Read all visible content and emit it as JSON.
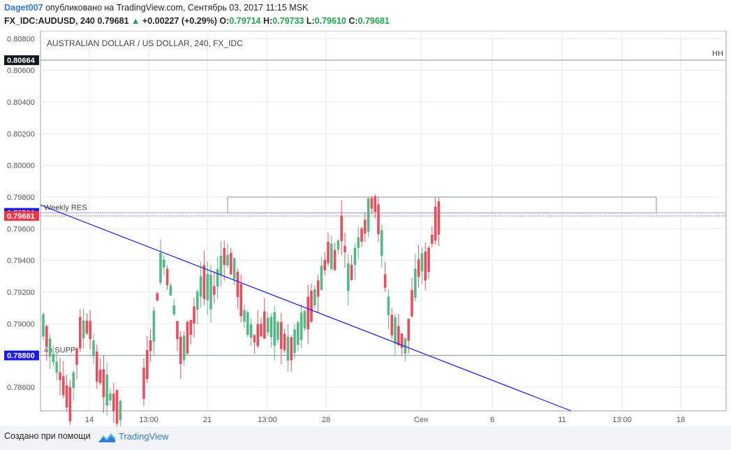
{
  "header": {
    "author": "Daget007",
    "published": "опубликовано на TradingView.com, Сентябрь 03, 2017 11:15 MSK",
    "symbol": "FX_IDC:AUDUSD, 240",
    "last": "0.79681",
    "change": "+0.00227 (+0.29%)",
    "ohlc": [
      {
        "label": "O:",
        "value": "0.79714"
      },
      {
        "label": "H:",
        "value": "0.79733"
      },
      {
        "label": "L:",
        "value": "0.79610"
      },
      {
        "label": "C:",
        "value": "0.79681"
      }
    ]
  },
  "footer": {
    "created_with": "Создано при помощи",
    "brand": "TradingView"
  },
  "colors": {
    "up": "#53b987",
    "down": "#eb4d5c",
    "trendline": "#1c1ce6",
    "price_label": "#f23645",
    "axis_label": "#1c1ce6",
    "accent": "#2d7ad6"
  },
  "chart_data": {
    "type": "candlestick",
    "title": "AUSTRALIAN DOLLAR / US DOLLAR, 240, FX_IDC",
    "y_axis": {
      "position": "left",
      "ticks": [
        "0.80800",
        "0.80600",
        "0.80400",
        "0.80200",
        "0.80000",
        "0.79800",
        "0.79600",
        "0.79400",
        "0.79200",
        "0.79000",
        "0.78800",
        "0.78600"
      ],
      "range": [
        0.7845,
        0.8085
      ]
    },
    "x_axis": {
      "labels": [
        "14",
        "13:00",
        "21",
        "13:00",
        "28",
        "Сен",
        "6",
        "11",
        "13:00",
        "18"
      ]
    },
    "grid": true,
    "horizontal_lines": [
      {
        "price": 0.80664,
        "label": "HH",
        "axis_label": "0.80664"
      },
      {
        "price": 0.797,
        "label": "Weekly RES",
        "axis_label": "0.79700"
      },
      {
        "price": 0.788,
        "label": "4h SUPP",
        "axis_label": "0.78800"
      }
    ],
    "last_price": {
      "price": 0.79681,
      "label": "0.79681"
    },
    "zone": {
      "top": 0.798,
      "bottom": 0.797
    },
    "trendline": {
      "from": 0.7975,
      "to": 0.7845
    },
    "candles_sample_count": 120
  }
}
